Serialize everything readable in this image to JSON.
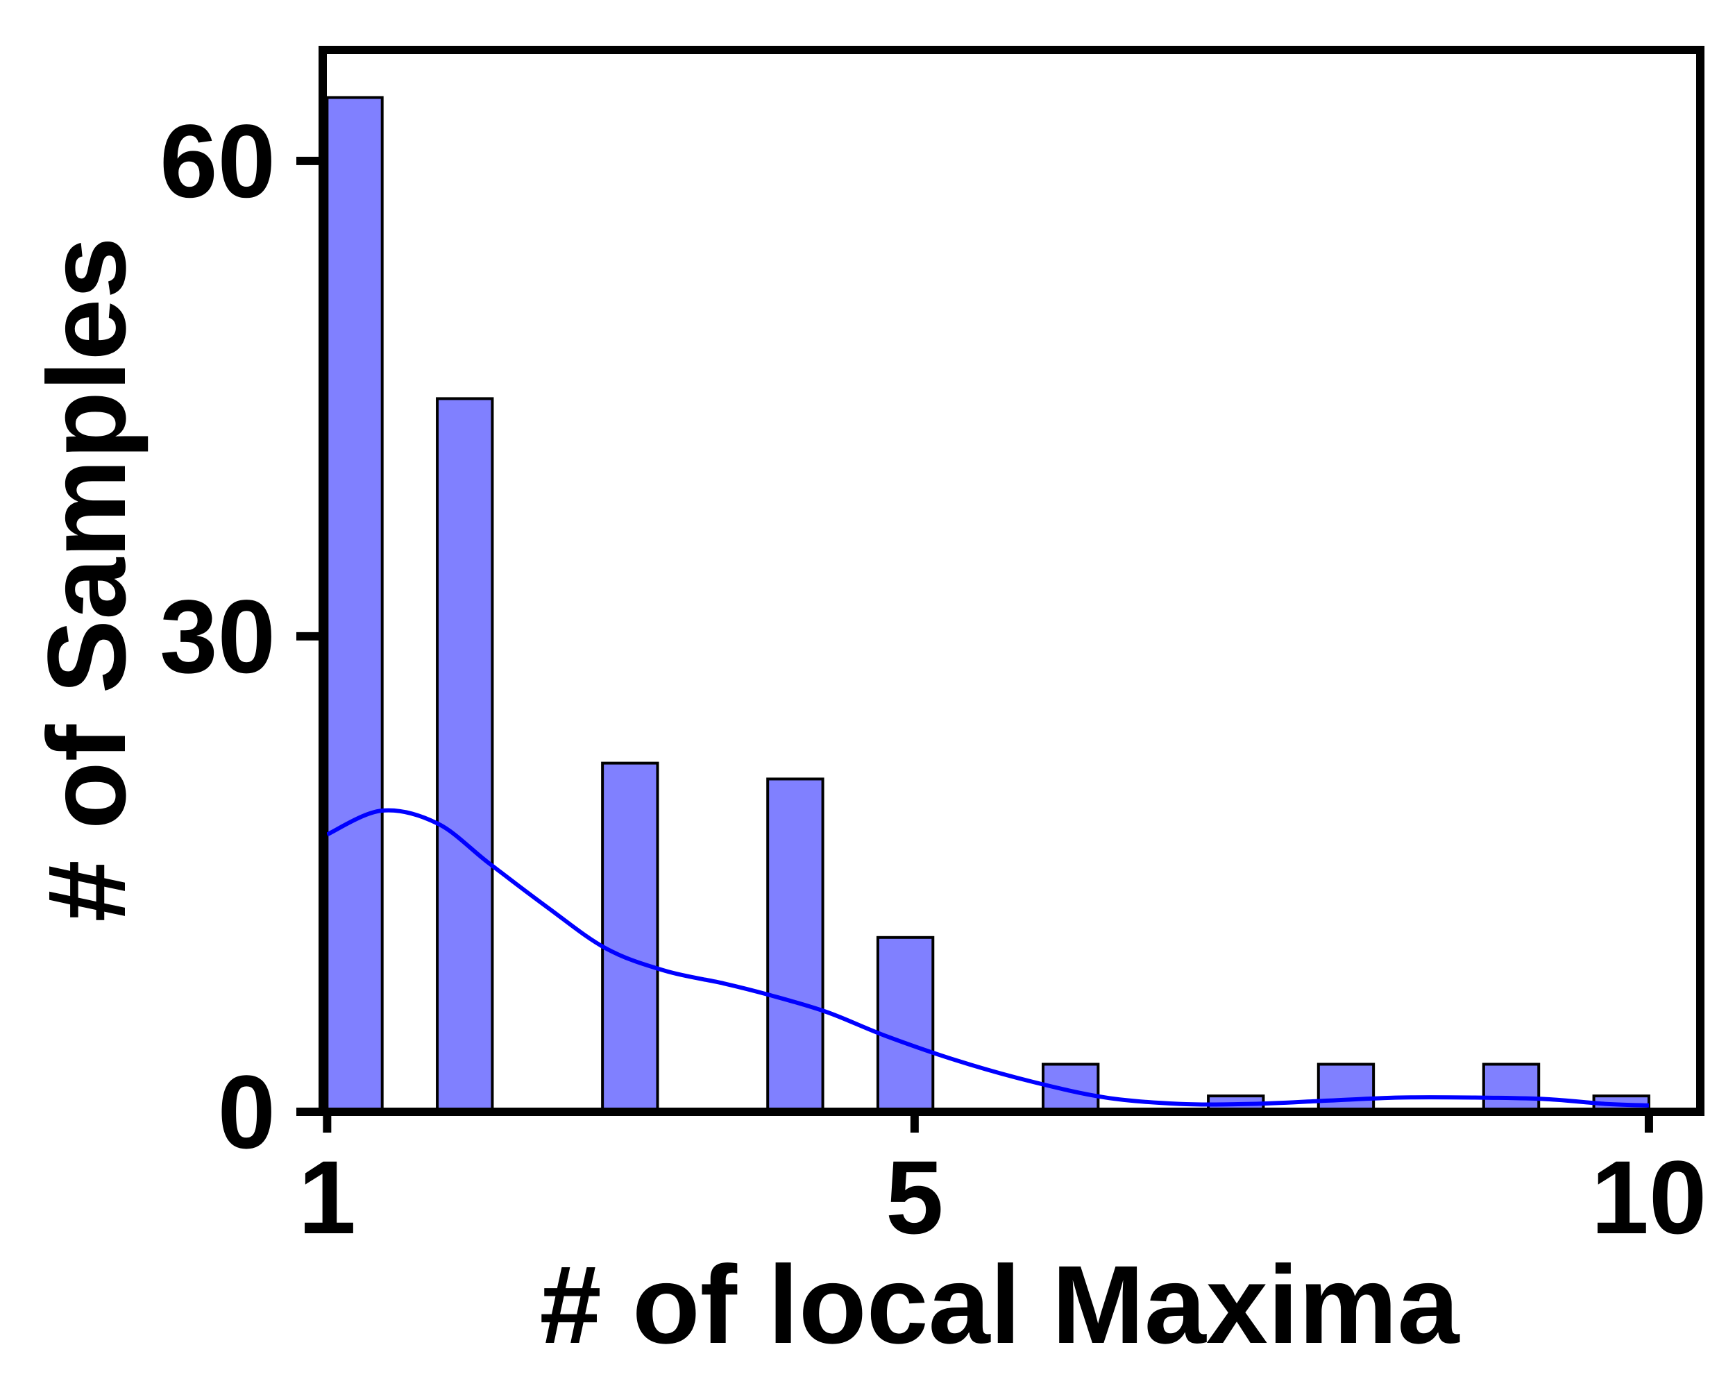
{
  "chart_data": {
    "type": "bar",
    "title": "",
    "xlabel": "# of local Maxima",
    "ylabel": "# of Samples",
    "xlim": [
      0.97,
      10.35
    ],
    "ylim": [
      0,
      67
    ],
    "x_ticks": [
      1,
      5,
      10
    ],
    "y_ticks": [
      0,
      30,
      60
    ],
    "grid": false,
    "bins": [
      {
        "x0": 1.0,
        "x1": 1.375,
        "value": 64
      },
      {
        "x0": 1.75,
        "x1": 2.125,
        "value": 45
      },
      {
        "x0": 2.875,
        "x1": 3.25,
        "value": 22
      },
      {
        "x0": 4.0,
        "x1": 4.375,
        "value": 21
      },
      {
        "x0": 4.75,
        "x1": 5.125,
        "value": 11
      },
      {
        "x0": 5.875,
        "x1": 6.25,
        "value": 3
      },
      {
        "x0": 7.0,
        "x1": 7.375,
        "value": 1
      },
      {
        "x0": 7.75,
        "x1": 8.125,
        "value": 3
      },
      {
        "x0": 8.875,
        "x1": 9.25,
        "value": 3
      },
      {
        "x0": 9.625,
        "x1": 10.0,
        "value": 1
      }
    ],
    "kde_curve": {
      "x": [
        1.0,
        1.37,
        1.75,
        2.1,
        2.5,
        2.9,
        3.3,
        3.7,
        4.0,
        4.4,
        4.8,
        5.3,
        5.8,
        6.3,
        6.8,
        7.3,
        7.8,
        8.3,
        8.8,
        9.3,
        9.7,
        10.0
      ],
      "y": [
        17.5,
        19.0,
        18.2,
        15.7,
        12.9,
        10.3,
        8.9,
        8.1,
        7.4,
        6.3,
        4.8,
        3.2,
        1.9,
        0.9,
        0.5,
        0.5,
        0.7,
        0.9,
        0.9,
        0.8,
        0.5,
        0.4
      ]
    },
    "colors": {
      "bar_fill": "#8080ff",
      "bar_edge": "#000000",
      "kde_line": "#0000ff",
      "axes": "#000000"
    }
  }
}
